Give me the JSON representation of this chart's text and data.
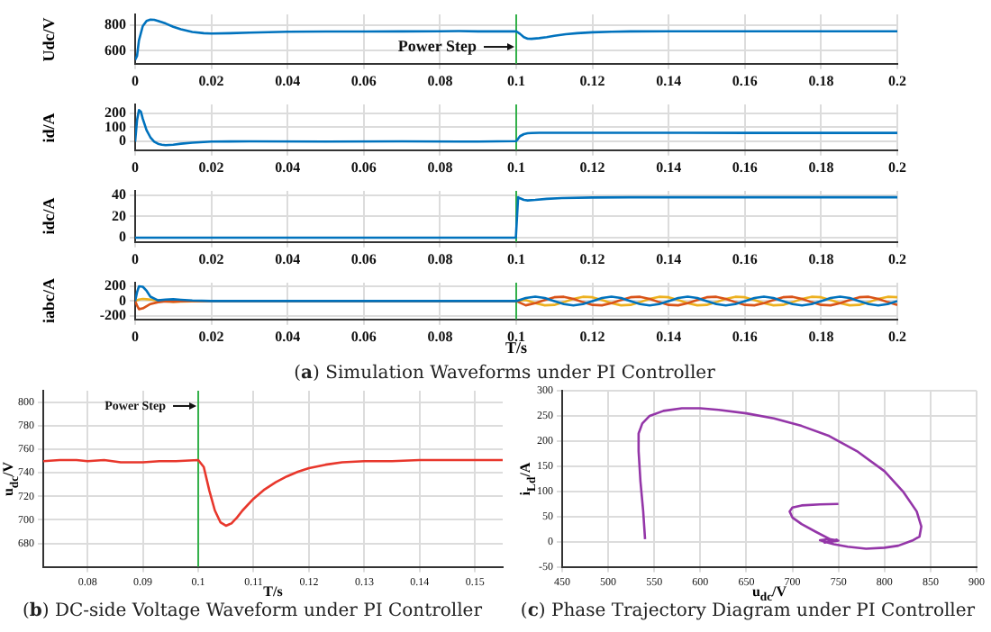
{
  "chart_data": [
    {
      "type": "line",
      "ylabel": "Udc/V",
      "xlim": [
        0,
        0.2
      ],
      "xticks": [
        0,
        0.02,
        0.04,
        0.06,
        0.08,
        0.1,
        0.12,
        0.14,
        0.16,
        0.18,
        0.2
      ],
      "ylim": [
        500,
        880
      ],
      "yticks": [
        600,
        800
      ],
      "grid": true,
      "ref_lines": [
        {
          "axis": "x",
          "value": 0.1,
          "color": "#33b04a"
        }
      ],
      "annotations": [
        {
          "text": "Power Step",
          "x": 0.1,
          "y": 630
        }
      ],
      "x": [
        0,
        0.0005,
        0.001,
        0.002,
        0.003,
        0.004,
        0.005,
        0.006,
        0.008,
        0.01,
        0.012,
        0.015,
        0.018,
        0.02,
        0.025,
        0.03,
        0.04,
        0.05,
        0.06,
        0.07,
        0.08,
        0.085,
        0.09,
        0.1,
        0.101,
        0.102,
        0.103,
        0.104,
        0.106,
        0.108,
        0.11,
        0.113,
        0.116,
        0.12,
        0.125,
        0.13,
        0.14,
        0.16,
        0.18,
        0.2
      ],
      "series": [
        {
          "color": "#0072bd",
          "values": [
            530,
            560,
            680,
            790,
            830,
            840,
            838,
            830,
            810,
            785,
            765,
            745,
            735,
            733,
            735,
            740,
            746,
            748,
            748,
            749,
            750,
            752,
            749,
            750,
            730,
            705,
            693,
            692,
            697,
            705,
            715,
            727,
            735,
            742,
            747,
            749,
            750,
            750,
            750,
            750
          ]
        }
      ]
    },
    {
      "type": "line",
      "ylabel": "id/A",
      "xlim": [
        0,
        0.2
      ],
      "xticks": [
        0,
        0.02,
        0.04,
        0.06,
        0.08,
        0.1,
        0.12,
        0.14,
        0.16,
        0.18,
        0.2
      ],
      "ylim": [
        -60,
        260
      ],
      "yticks": [
        0,
        100,
        200
      ],
      "grid": true,
      "ref_lines": [
        {
          "axis": "x",
          "value": 0.1,
          "color": "#33b04a"
        }
      ],
      "x": [
        0,
        0.0005,
        0.001,
        0.0015,
        0.002,
        0.003,
        0.004,
        0.005,
        0.006,
        0.007,
        0.008,
        0.01,
        0.012,
        0.015,
        0.02,
        0.03,
        0.05,
        0.07,
        0.09,
        0.1,
        0.1005,
        0.101,
        0.102,
        0.103,
        0.104,
        0.106,
        0.11,
        0.13,
        0.16,
        0.2
      ],
      "series": [
        {
          "color": "#0072bd",
          "values": [
            0,
            150,
            220,
            210,
            160,
            80,
            30,
            0,
            -15,
            -22,
            -25,
            -22,
            -15,
            -8,
            0,
            2,
            0,
            2,
            0,
            3,
            20,
            38,
            52,
            58,
            60,
            62,
            62,
            62,
            61,
            61
          ]
        }
      ]
    },
    {
      "type": "line",
      "ylabel": "idc/A",
      "xlim": [
        0,
        0.2
      ],
      "xticks": [
        0,
        0.02,
        0.04,
        0.06,
        0.08,
        0.1,
        0.12,
        0.14,
        0.16,
        0.18,
        0.2
      ],
      "ylim": [
        -4,
        44
      ],
      "yticks": [
        0,
        20,
        40
      ],
      "grid": true,
      "ref_lines": [
        {
          "axis": "x",
          "value": 0.1,
          "color": "#33b04a"
        }
      ],
      "x": [
        0,
        0.05,
        0.0999,
        0.1,
        0.1005,
        0.101,
        0.102,
        0.103,
        0.105,
        0.108,
        0.112,
        0.12,
        0.13,
        0.15,
        0.2
      ],
      "series": [
        {
          "color": "#0072bd",
          "values": [
            0,
            0,
            0,
            0,
            38,
            37,
            35.5,
            35,
            35.5,
            36.5,
            37.2,
            37.8,
            38,
            38,
            38
          ]
        }
      ]
    },
    {
      "type": "line",
      "ylabel": "iabc/A",
      "xlabel": "T/s",
      "xlim": [
        0,
        0.2
      ],
      "xticks": [
        0,
        0.02,
        0.04,
        0.06,
        0.08,
        0.1,
        0.12,
        0.14,
        0.16,
        0.18,
        0.2
      ],
      "ylim": [
        -250,
        250
      ],
      "yticks": [
        -200,
        0,
        200
      ],
      "grid": true,
      "ref_lines": [
        {
          "axis": "x",
          "value": 0.1,
          "color": "#33b04a"
        }
      ],
      "annotations": [
        "(a) Simulation Waveforms under PI Controller"
      ],
      "x": [
        0,
        0.0005,
        0.001,
        0.002,
        0.003,
        0.004,
        0.006,
        0.008,
        0.01,
        0.012,
        0.015,
        0.02,
        0.05,
        0.08,
        0.1,
        0.1025,
        0.105,
        0.1075,
        0.11,
        0.1125,
        0.115,
        0.1175,
        0.12,
        0.1225,
        0.125,
        0.1275,
        0.13,
        0.1325,
        0.135,
        0.1375,
        0.14,
        0.1425,
        0.145,
        0.1475,
        0.15,
        0.1525,
        0.155,
        0.1575,
        0.16,
        0.1625,
        0.165,
        0.1675,
        0.17,
        0.1725,
        0.175,
        0.1775,
        0.18,
        0.1825,
        0.185,
        0.1875,
        0.19,
        0.1925,
        0.195,
        0.1975,
        0.2
      ],
      "series": [
        {
          "color": "#0072bd",
          "values": [
            0,
            120,
            200,
            195,
            140,
            60,
            10,
            20,
            25,
            18,
            8,
            0,
            0,
            0,
            0,
            42,
            60,
            42,
            0,
            -42,
            -60,
            -42,
            0,
            42,
            60,
            42,
            0,
            -42,
            -60,
            -42,
            0,
            42,
            60,
            42,
            0,
            -42,
            -60,
            -42,
            0,
            42,
            60,
            42,
            0,
            -42,
            -60,
            -42,
            0,
            42,
            60,
            42,
            0,
            -42,
            -60,
            -42,
            0
          ]
        },
        {
          "color": "#d95319",
          "values": [
            0,
            -60,
            -110,
            -100,
            -70,
            -40,
            -15,
            -5,
            -10,
            -5,
            -2,
            0,
            0,
            0,
            0,
            -58,
            -30,
            15,
            52,
            58,
            30,
            -15,
            -52,
            -58,
            -30,
            15,
            52,
            58,
            30,
            -15,
            -52,
            -58,
            -30,
            15,
            52,
            58,
            30,
            -15,
            -52,
            -58,
            -30,
            15,
            52,
            58,
            30,
            -15,
            -52,
            -58,
            -30,
            15,
            52,
            58,
            30,
            -15,
            -52
          ]
        },
        {
          "color": "#edb120",
          "values": [
            0,
            10,
            20,
            30,
            25,
            20,
            10,
            -5,
            -10,
            -8,
            -3,
            0,
            0,
            0,
            0,
            15,
            -30,
            -58,
            -52,
            -15,
            30,
            58,
            52,
            15,
            -30,
            -58,
            -52,
            -15,
            30,
            58,
            52,
            15,
            -30,
            -58,
            -52,
            -15,
            30,
            58,
            52,
            15,
            -30,
            -58,
            -52,
            -15,
            30,
            58,
            52,
            15,
            -30,
            -58,
            -52,
            -15,
            30,
            58,
            52
          ]
        }
      ]
    },
    {
      "type": "line",
      "ylabel": "u$_{dc}$/V",
      "xlabel": "T/s",
      "xlim": [
        0.072,
        0.155
      ],
      "xticks": [
        0.08,
        0.09,
        0.1,
        0.11,
        0.12,
        0.13,
        0.14,
        0.15
      ],
      "ylim": [
        660,
        810
      ],
      "yticks": [
        680,
        700,
        720,
        740,
        760,
        780,
        800
      ],
      "grid": true,
      "ref_lines": [
        {
          "axis": "x",
          "value": 0.1,
          "color": "#33b04a"
        }
      ],
      "annotations": [
        {
          "text": "Power Step",
          "x": 0.1,
          "y": 797
        },
        "(b) DC-side Voltage Waveform under PI Controller"
      ],
      "x": [
        0.072,
        0.075,
        0.078,
        0.08,
        0.083,
        0.086,
        0.09,
        0.093,
        0.096,
        0.1,
        0.101,
        0.102,
        0.103,
        0.104,
        0.105,
        0.106,
        0.107,
        0.108,
        0.11,
        0.112,
        0.114,
        0.116,
        0.118,
        0.12,
        0.123,
        0.126,
        0.13,
        0.135,
        0.14,
        0.145,
        0.15,
        0.155
      ],
      "series": [
        {
          "color": "#e8372c",
          "values": [
            750,
            751,
            751,
            750,
            751,
            749,
            749,
            750,
            750,
            751,
            745,
            725,
            708,
            698,
            695,
            697,
            702,
            708,
            718,
            726,
            732,
            737,
            741,
            744,
            747,
            749,
            750,
            750,
            751,
            751,
            751,
            751
          ]
        }
      ]
    },
    {
      "type": "line",
      "ylabel": "i$_{Ld}$/A",
      "xlabel": "u$_{dc}$/V",
      "xlim": [
        450,
        900
      ],
      "xticks": [
        450,
        500,
        550,
        600,
        650,
        700,
        750,
        800,
        850,
        900
      ],
      "ylim": [
        -50,
        300
      ],
      "yticks": [
        -50,
        0,
        50,
        100,
        150,
        200,
        250,
        300
      ],
      "grid": true,
      "annotations": [
        "(c) Phase Trajectory Diagram under PI Controller"
      ],
      "x": [
        540,
        538,
        535,
        533,
        533,
        537,
        545,
        560,
        580,
        600,
        620,
        650,
        680,
        710,
        740,
        770,
        800,
        820,
        835,
        840,
        838,
        830,
        815,
        800,
        780,
        760,
        745,
        735,
        730,
        740,
        750,
        735,
        748,
        745,
        725,
        710,
        700,
        697,
        700,
        710,
        730,
        750
      ],
      "series": [
        {
          "color": "#9436a8",
          "values": [
            5,
            60,
            120,
            180,
            215,
            235,
            250,
            260,
            265,
            265,
            262,
            255,
            245,
            230,
            210,
            180,
            140,
            100,
            60,
            30,
            10,
            2,
            -8,
            -12,
            -14,
            -10,
            -5,
            0,
            3,
            5,
            2,
            -2,
            4,
            1,
            20,
            35,
            48,
            60,
            68,
            72,
            74,
            75
          ]
        }
      ]
    }
  ]
}
